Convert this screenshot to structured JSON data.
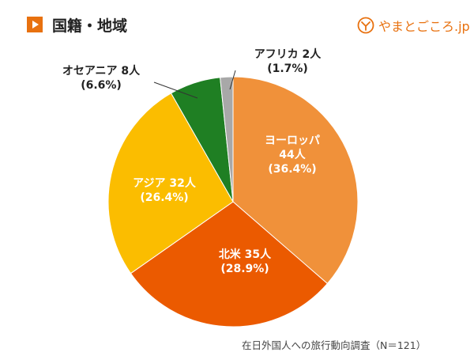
{
  "header": {
    "title": "国籍・地域",
    "logo_text": "やまとごころ.jp"
  },
  "chart_data": {
    "type": "pie",
    "slices": [
      {
        "name": "ヨーロッパ",
        "count": "44人",
        "percent": "(36.4%)",
        "value": 44,
        "color": "#f0913a"
      },
      {
        "name": "北米",
        "count": "35人",
        "percent": "(28.9%)",
        "value": 35,
        "color": "#eb5a00"
      },
      {
        "name": "アジア",
        "count": "32人",
        "percent": "(26.4%)",
        "value": 32,
        "color": "#fbbd00"
      },
      {
        "name": "オセアニア",
        "count": "8人",
        "percent": "(6.6%)",
        "value": 8,
        "color": "#1f7f23"
      },
      {
        "name": "アフリカ",
        "count": "2人",
        "percent": "(1.7%)",
        "value": 2,
        "color": "#a8a8a8"
      }
    ]
  },
  "footer": {
    "source": "在日外国人への旅行動向調査（N＝121）"
  }
}
